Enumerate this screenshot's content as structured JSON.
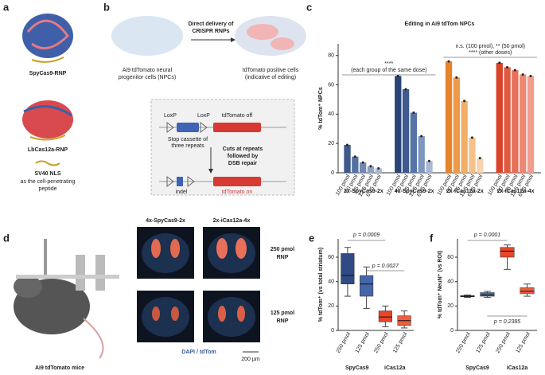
{
  "panel_letters": [
    "a",
    "b",
    "c",
    "d",
    "e",
    "f"
  ],
  "panel_a": {
    "labels": [
      "SpyCas9-RNP",
      "LbCas12a-RNP",
      "SV40 NLS",
      "as the cell-penetrating",
      "peptide"
    ]
  },
  "panel_b": {
    "arrow_label": [
      "Direct delivery of",
      "CRISPR RNPs"
    ],
    "left_caption": [
      "Ai9 tdTomato neural",
      "progenitor cells (NPCs)"
    ],
    "right_caption": [
      "tdTomato positive cells",
      "(indicative of editing)"
    ],
    "loxp": [
      "LoxP",
      "LoxP"
    ],
    "off": "tdTomato off",
    "stop": [
      "Stop cassette of",
      "three repeats"
    ],
    "cuts": [
      "Cuts at repeats",
      "followed by",
      "DSB repair"
    ],
    "indel": "indel",
    "on": "tdTomato on"
  },
  "panel_d": {
    "mice": "Ai9 tdTomato mice",
    "columns": [
      "4x-SpyCas9-2x",
      "2x-iCas12a-4x"
    ],
    "rows": [
      [
        "250 pmol",
        "RNP"
      ],
      [
        "125 pmol",
        "RNP"
      ]
    ],
    "stain": "DAPI / tdTom",
    "scale": "200 µm"
  },
  "chart_data": [
    {
      "type": "bar",
      "title": "Editing in Ai9 tdTom NPCs",
      "ylabel": "% tdTom⁺ NPCs",
      "categories": [
        "100 pmol",
        "50 pmol",
        "25 pmol",
        "12.5 pmol",
        "6.25 pmol"
      ],
      "series": [
        {
          "name": "2x-SpyCas9-2x",
          "colors": [
            "#3c5a8c",
            "#55729f",
            "#7088b0",
            "#8ea1c2",
            "#aab9d4"
          ],
          "values": [
            19,
            11,
            7,
            4.5,
            3
          ]
        },
        {
          "name": "4x-SpyCas9-2x",
          "colors": [
            "#2b4478",
            "#3e5a8e",
            "#5674a5",
            "#7d96c0",
            "#a9b8d6"
          ],
          "values": [
            66,
            57,
            41,
            25,
            8
          ]
        },
        {
          "name": "2x-iCas12a-2x",
          "colors": [
            "#e8832a",
            "#ee9a48",
            "#f1ae67",
            "#f4c18a",
            "#f7d4ae"
          ],
          "values": [
            76,
            65,
            49,
            24,
            10
          ]
        },
        {
          "name": "2x-iCas12a-4x",
          "colors": [
            "#d9442b",
            "#e05a42",
            "#e6705a",
            "#ec8774",
            "#f19e8f"
          ],
          "values": [
            75,
            72,
            70,
            67,
            66
          ]
        }
      ],
      "annotations": [
        "****",
        "(each group of the same dose)",
        "n.s. (100 pmol), ** (50 pmol)",
        "**** (other doses)"
      ],
      "ylim": [
        0,
        88
      ],
      "yticks": [
        0,
        20,
        40,
        60,
        80
      ]
    },
    {
      "type": "box",
      "ylabel": "% tdTom⁺ (vs total striatum)",
      "categories": [
        "250 pmol",
        "125 pmol",
        "250 pmol",
        "125 pmol"
      ],
      "groups": [
        "SpyCas9",
        "iCas12a"
      ],
      "colors": [
        "#2f4a85",
        "#4566a8",
        "#e8452a",
        "#ec5e40"
      ],
      "group_colors": [
        "#2f4a85",
        "#e8452a"
      ],
      "values": [
        {
          "min": 28,
          "q1": 38,
          "median": 45,
          "q3": 63,
          "max": 68
        },
        {
          "min": 18,
          "q1": 28,
          "median": 38,
          "q3": 45,
          "max": 52
        },
        {
          "min": 3,
          "q1": 7,
          "median": 11,
          "q3": 16,
          "max": 20
        },
        {
          "min": 2,
          "q1": 4,
          "median": 8,
          "q3": 12,
          "max": 16
        }
      ],
      "annotations": [
        "p = 0.0009",
        "p = 0.0027"
      ],
      "ylim": [
        0,
        75
      ],
      "yticks": [
        0,
        20,
        40,
        60
      ]
    },
    {
      "type": "box",
      "ylabel": "% tdTom⁺ NeuN⁺ (vs ROI)",
      "categories": [
        "250 pmol",
        "125 pmol",
        "250 pmol",
        "125 pmol"
      ],
      "groups": [
        "SpyCas9",
        "iCas12a"
      ],
      "colors": [
        "#2f4a85",
        "#4566a8",
        "#e8452a",
        "#ec5e40"
      ],
      "group_colors": [
        "#2f4a85",
        "#e8452a"
      ],
      "values": [
        {
          "min": 27,
          "q1": 27.5,
          "median": 28,
          "q3": 28.5,
          "max": 29
        },
        {
          "min": 27,
          "q1": 28,
          "median": 29,
          "q3": 31,
          "max": 32
        },
        {
          "min": 50,
          "q1": 60,
          "median": 65,
          "q3": 68,
          "max": 70
        },
        {
          "min": 28,
          "q1": 30,
          "median": 32,
          "q3": 35,
          "max": 38
        }
      ],
      "annotations": [
        "p = 0.0001",
        "p = 0.2385"
      ],
      "ylim": [
        0,
        75
      ],
      "yticks": [
        0,
        20,
        40,
        60
      ]
    }
  ]
}
